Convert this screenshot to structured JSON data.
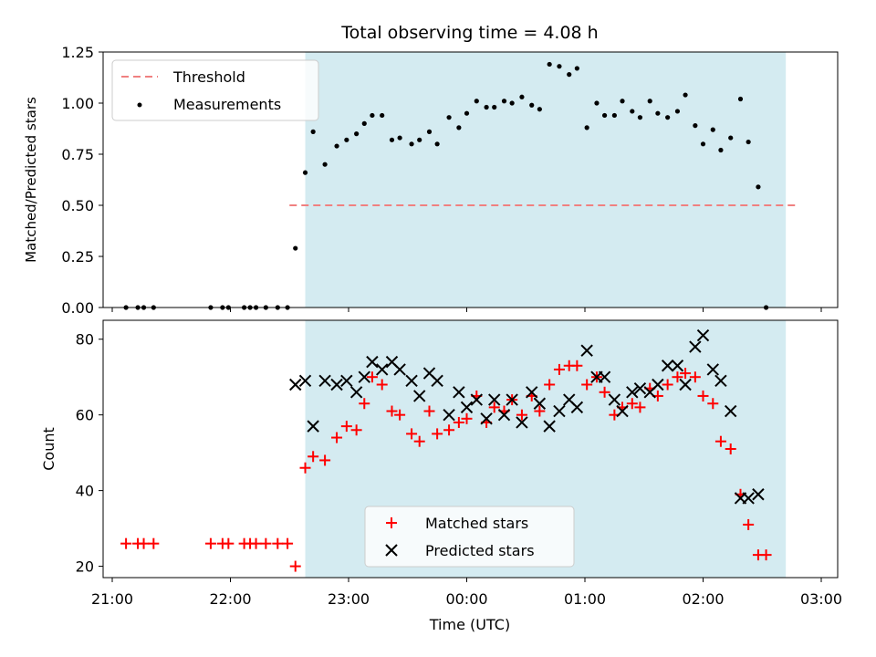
{
  "chart_data": [
    {
      "type": "scatter",
      "title": "Total observing time = 4.08 h",
      "ylabel": "Matched/Predicted stars",
      "ylim": [
        0,
        1.25
      ],
      "yticks": [
        "0.00",
        "0.25",
        "0.50",
        "0.75",
        "1.00",
        "1.25"
      ],
      "shaded_region": {
        "from": "22:38",
        "to": "02:42",
        "color": "#d4ebf1"
      },
      "threshold": {
        "name": "Threshold",
        "value": 0.5,
        "from": "22:30",
        "to": "02:47",
        "color": "#f08080"
      },
      "series": [
        {
          "name": "Measurements",
          "color": "#000000",
          "marker": "dot",
          "points": [
            [
              "21:07",
              0.0
            ],
            [
              "21:13",
              0.0
            ],
            [
              "21:16",
              0.0
            ],
            [
              "21:21",
              0.0
            ],
            [
              "21:50",
              0.0
            ],
            [
              "21:56",
              0.0
            ],
            [
              "21:59",
              0.0
            ],
            [
              "22:07",
              0.0
            ],
            [
              "22:10",
              0.0
            ],
            [
              "22:13",
              0.0
            ],
            [
              "22:18",
              0.0
            ],
            [
              "22:24",
              0.0
            ],
            [
              "22:29",
              0.0
            ],
            [
              "22:33",
              0.29
            ],
            [
              "22:38",
              0.66
            ],
            [
              "22:42",
              0.86
            ],
            [
              "22:48",
              0.7
            ],
            [
              "22:54",
              0.79
            ],
            [
              "22:59",
              0.82
            ],
            [
              "23:04",
              0.85
            ],
            [
              "23:08",
              0.9
            ],
            [
              "23:12",
              0.94
            ],
            [
              "23:17",
              0.94
            ],
            [
              "23:22",
              0.82
            ],
            [
              "23:26",
              0.83
            ],
            [
              "23:32",
              0.8
            ],
            [
              "23:36",
              0.82
            ],
            [
              "23:41",
              0.86
            ],
            [
              "23:45",
              0.8
            ],
            [
              "23:51",
              0.93
            ],
            [
              "23:56",
              0.88
            ],
            [
              "00:00",
              0.95
            ],
            [
              "00:05",
              1.01
            ],
            [
              "00:10",
              0.98
            ],
            [
              "00:14",
              0.98
            ],
            [
              "00:19",
              1.01
            ],
            [
              "00:23",
              1.0
            ],
            [
              "00:28",
              1.03
            ],
            [
              "00:33",
              0.99
            ],
            [
              "00:37",
              0.97
            ],
            [
              "00:42",
              1.19
            ],
            [
              "00:47",
              1.18
            ],
            [
              "00:52",
              1.14
            ],
            [
              "00:56",
              1.17
            ],
            [
              "01:01",
              0.88
            ],
            [
              "01:06",
              1.0
            ],
            [
              "01:10",
              0.94
            ],
            [
              "01:15",
              0.94
            ],
            [
              "01:19",
              1.01
            ],
            [
              "01:24",
              0.96
            ],
            [
              "01:28",
              0.93
            ],
            [
              "01:33",
              1.01
            ],
            [
              "01:37",
              0.95
            ],
            [
              "01:42",
              0.93
            ],
            [
              "01:47",
              0.96
            ],
            [
              "01:51",
              1.04
            ],
            [
              "01:56",
              0.89
            ],
            [
              "02:00",
              0.8
            ],
            [
              "02:05",
              0.87
            ],
            [
              "02:09",
              0.77
            ],
            [
              "02:14",
              0.83
            ],
            [
              "02:19",
              1.02
            ],
            [
              "02:23",
              0.81
            ],
            [
              "02:28",
              0.59
            ],
            [
              "02:32",
              0.0
            ]
          ]
        }
      ],
      "legend": {
        "placement": "top-left"
      }
    },
    {
      "type": "scatter",
      "xlabel": "Time (UTC)",
      "ylabel": "Count",
      "ylim": [
        17,
        85
      ],
      "yticks": [
        "20",
        "40",
        "60",
        "80"
      ],
      "xticks": [
        "21:00",
        "22:00",
        "23:00",
        "00:00",
        "01:00",
        "02:00",
        "03:00"
      ],
      "shaded_region": {
        "from": "22:38",
        "to": "02:42",
        "color": "#d4ebf1"
      },
      "series": [
        {
          "name": "Matched stars",
          "color": "#ff0000",
          "marker": "plus",
          "points": [
            [
              "21:07",
              26
            ],
            [
              "21:13",
              26
            ],
            [
              "21:16",
              26
            ],
            [
              "21:21",
              26
            ],
            [
              "21:50",
              26
            ],
            [
              "21:56",
              26
            ],
            [
              "21:59",
              26
            ],
            [
              "22:07",
              26
            ],
            [
              "22:10",
              26
            ],
            [
              "22:13",
              26
            ],
            [
              "22:18",
              26
            ],
            [
              "22:24",
              26
            ],
            [
              "22:29",
              26
            ],
            [
              "22:33",
              20
            ],
            [
              "22:38",
              46
            ],
            [
              "22:42",
              49
            ],
            [
              "22:48",
              48
            ],
            [
              "22:54",
              54
            ],
            [
              "22:59",
              57
            ],
            [
              "23:04",
              56
            ],
            [
              "23:08",
              63
            ],
            [
              "23:12",
              70
            ],
            [
              "23:17",
              68
            ],
            [
              "23:22",
              61
            ],
            [
              "23:26",
              60
            ],
            [
              "23:32",
              55
            ],
            [
              "23:36",
              53
            ],
            [
              "23:41",
              61
            ],
            [
              "23:45",
              55
            ],
            [
              "23:51",
              56
            ],
            [
              "23:56",
              58
            ],
            [
              "00:00",
              59
            ],
            [
              "00:05",
              65
            ],
            [
              "00:10",
              58
            ],
            [
              "00:14",
              62
            ],
            [
              "00:19",
              61
            ],
            [
              "00:23",
              64
            ],
            [
              "00:28",
              60
            ],
            [
              "00:33",
              65
            ],
            [
              "00:37",
              61
            ],
            [
              "00:42",
              68
            ],
            [
              "00:47",
              72
            ],
            [
              "00:52",
              73
            ],
            [
              "00:56",
              73
            ],
            [
              "01:01",
              68
            ],
            [
              "01:06",
              70
            ],
            [
              "01:10",
              66
            ],
            [
              "01:15",
              60
            ],
            [
              "01:19",
              62
            ],
            [
              "01:24",
              63
            ],
            [
              "01:28",
              62
            ],
            [
              "01:33",
              67
            ],
            [
              "01:37",
              65
            ],
            [
              "01:42",
              68
            ],
            [
              "01:47",
              70
            ],
            [
              "01:51",
              71
            ],
            [
              "01:56",
              70
            ],
            [
              "02:00",
              65
            ],
            [
              "02:05",
              63
            ],
            [
              "02:09",
              53
            ],
            [
              "02:14",
              51
            ],
            [
              "02:19",
              39
            ],
            [
              "02:23",
              31
            ],
            [
              "02:28",
              23
            ],
            [
              "02:32",
              23
            ]
          ]
        },
        {
          "name": "Predicted stars",
          "color": "#000000",
          "marker": "x",
          "points": [
            [
              "22:33",
              68
            ],
            [
              "22:38",
              69
            ],
            [
              "22:42",
              57
            ],
            [
              "22:48",
              69
            ],
            [
              "22:54",
              68
            ],
            [
              "22:59",
              69
            ],
            [
              "23:04",
              66
            ],
            [
              "23:08",
              70
            ],
            [
              "23:12",
              74
            ],
            [
              "23:17",
              72
            ],
            [
              "23:22",
              74
            ],
            [
              "23:26",
              72
            ],
            [
              "23:32",
              69
            ],
            [
              "23:36",
              65
            ],
            [
              "23:41",
              71
            ],
            [
              "23:45",
              69
            ],
            [
              "23:51",
              60
            ],
            [
              "23:56",
              66
            ],
            [
              "00:00",
              62
            ],
            [
              "00:05",
              64
            ],
            [
              "00:10",
              59
            ],
            [
              "00:14",
              64
            ],
            [
              "00:19",
              60
            ],
            [
              "00:23",
              64
            ],
            [
              "00:28",
              58
            ],
            [
              "00:33",
              66
            ],
            [
              "00:37",
              63
            ],
            [
              "00:42",
              57
            ],
            [
              "00:47",
              61
            ],
            [
              "00:52",
              64
            ],
            [
              "00:56",
              62
            ],
            [
              "01:01",
              77
            ],
            [
              "01:06",
              70
            ],
            [
              "01:10",
              70
            ],
            [
              "01:15",
              64
            ],
            [
              "01:19",
              61
            ],
            [
              "01:24",
              66
            ],
            [
              "01:28",
              67
            ],
            [
              "01:33",
              66
            ],
            [
              "01:37",
              68
            ],
            [
              "01:42",
              73
            ],
            [
              "01:47",
              73
            ],
            [
              "01:51",
              68
            ],
            [
              "01:56",
              78
            ],
            [
              "02:00",
              81
            ],
            [
              "02:05",
              72
            ],
            [
              "02:09",
              69
            ],
            [
              "02:14",
              61
            ],
            [
              "02:19",
              38
            ],
            [
              "02:23",
              38
            ],
            [
              "02:28",
              39
            ]
          ]
        }
      ],
      "legend": {
        "placement": "lower-center"
      }
    }
  ]
}
